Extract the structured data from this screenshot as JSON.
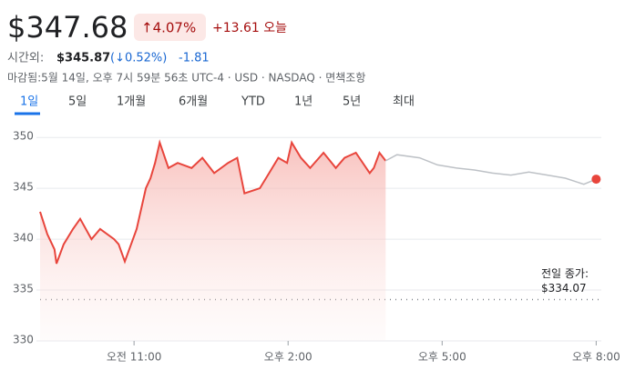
{
  "header": {
    "price": "$347.68",
    "change_percent": "↑4.07%",
    "change_today": "+13.61 오늘",
    "after_hours_label": "시간외:",
    "after_hours_price": "$345.87",
    "after_hours_percent": "(↓0.52%)",
    "after_hours_change": "-1.81",
    "status": "마감됨:5월 14일, 오후 7시 59분 56초 UTC-4 · USD · NASDAQ · 면책조항"
  },
  "tabs": [
    "1일",
    "5일",
    "1개월",
    "6개월",
    "YTD",
    "1년",
    "5년",
    "최대"
  ],
  "chart_data": {
    "type": "line",
    "series": [
      {
        "color": "#e8453c",
        "area": true,
        "x": [
          9.17,
          9.31,
          9.45,
          9.49,
          9.63,
          9.81,
          9.95,
          10.17,
          10.34,
          10.61,
          10.7,
          10.82,
          11.05,
          11.23,
          11.32,
          11.41,
          11.5,
          11.67,
          11.85,
          12.12,
          12.33,
          12.56,
          12.83,
          13.01,
          13.15,
          13.45,
          13.63,
          13.81,
          13.98,
          14.07,
          14.25,
          14.43,
          14.69,
          14.93,
          15.1,
          15.32,
          15.59,
          15.67,
          15.78,
          15.9
        ],
        "values": [
          342.7,
          340.5,
          339,
          337.6,
          339.5,
          341,
          342,
          340,
          341,
          340,
          339.5,
          337.8,
          341,
          345,
          346,
          347.5,
          349.5,
          347,
          347.5,
          347,
          348,
          346.5,
          347.5,
          348,
          344.5,
          345,
          346.5,
          348,
          347.5,
          349.5,
          348,
          347,
          348.5,
          347,
          348,
          348.5,
          346.5,
          347,
          348.5,
          347.7
        ]
      },
      {
        "color": "#bdc1c6",
        "area": false,
        "end_dot": "#e8453c",
        "x": [
          15.9,
          16.12,
          16.56,
          16.91,
          17.27,
          17.63,
          17.98,
          18.34,
          18.69,
          19.05,
          19.4,
          19.76,
          20.0
        ],
        "values": [
          347.7,
          348.3,
          348,
          347.3,
          347,
          346.8,
          346.5,
          346.3,
          346.6,
          346.3,
          346,
          345.4,
          345.9
        ]
      }
    ],
    "xlim": [
      9.17,
      20.1
    ],
    "xticks": [
      {
        "value": 11,
        "label": "오전 11:00"
      },
      {
        "value": 14,
        "label": "오후 2:00"
      },
      {
        "value": 17,
        "label": "오후 5:00"
      },
      {
        "value": 20,
        "label": "오후 8:00"
      }
    ],
    "ylim": [
      330,
      351
    ],
    "yticks": [
      330,
      335,
      340,
      345,
      350
    ],
    "grid": true,
    "previous_close": 334.07,
    "previous_close_title": "전일 종가:",
    "previous_close_label": "$334.07"
  }
}
